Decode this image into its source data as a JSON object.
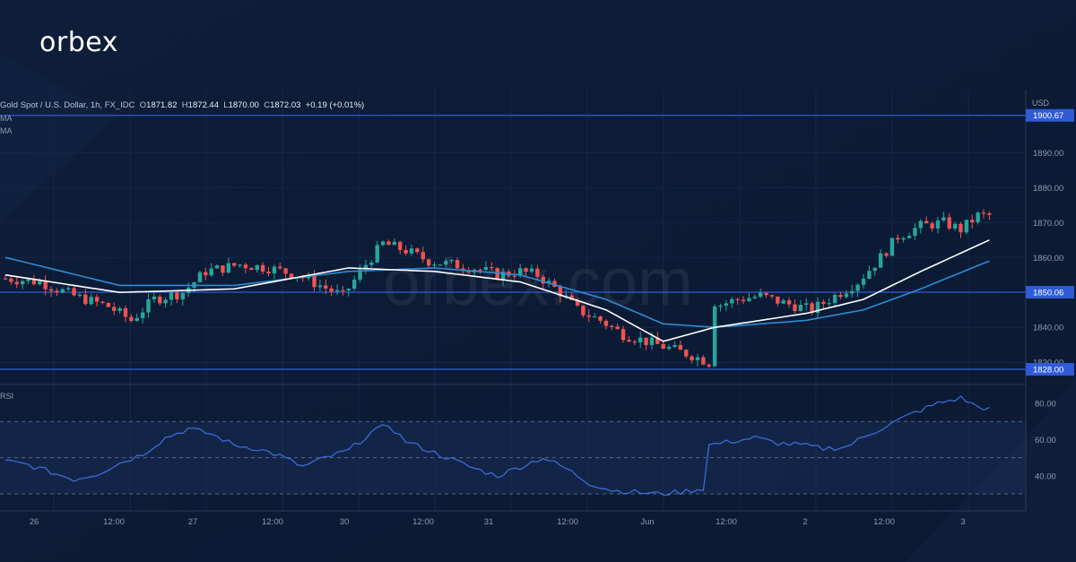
{
  "brand": {
    "logo_text": "orbex",
    "watermark": "orbex.com"
  },
  "legend": {
    "symbol": "Gold Spot / U.S. Dollar, 1h, FX_IDC",
    "o_label": "O",
    "o": "1871.82",
    "h_label": "H",
    "h": "1872.44",
    "l_label": "L",
    "l": "1870.00",
    "c_label": "C",
    "c": "1872.03",
    "change": "+0.19 (+0.01%)"
  },
  "indicator_labels": {
    "ma1": "MA",
    "ma2": "MA",
    "rsi": "RSI"
  },
  "price_axis": {
    "currency": "USD",
    "ticks": [
      "1890.00",
      "1880.00",
      "1870.00",
      "1860.00",
      "1840.00",
      "1830.00"
    ],
    "levels": [
      {
        "label": "1900.67",
        "value": 1900.67
      },
      {
        "label": "1850.06",
        "value": 1850.06
      },
      {
        "label": "1828.00",
        "value": 1828.0
      }
    ]
  },
  "rsi_axis": {
    "ticks": [
      "80.00",
      "60.00",
      "40.00"
    ]
  },
  "time_axis": {
    "labels": [
      "26",
      "12:00",
      "27",
      "12:00",
      "30",
      "12:00",
      "31",
      "12:00",
      "Jun",
      "12:00",
      "2",
      "12:00",
      "3"
    ]
  },
  "colors": {
    "background": "#0d1b33",
    "up": "#26a69a",
    "down": "#ef5350",
    "level_line": "#2f5bd6",
    "ma_fast": "#ffffff",
    "ma_slow": "#2e8bd6",
    "rsi_line": "#3f6ee0"
  },
  "chart_data": {
    "type": "line",
    "title": "Gold Spot / U.S. Dollar, 1h, FX_IDC",
    "ylabel": "USD",
    "ylim": [
      1826,
      1904
    ],
    "grid": true,
    "horizontal_levels": [
      1900.67,
      1850.06,
      1828.0
    ],
    "price_path": [
      [
        0,
        1854
      ],
      [
        6,
        1853
      ],
      [
        12,
        1849
      ],
      [
        18,
        1846
      ],
      [
        22,
        1842
      ],
      [
        26,
        1848
      ],
      [
        31,
        1850
      ],
      [
        35,
        1856
      ],
      [
        41,
        1858
      ],
      [
        46,
        1857
      ],
      [
        51,
        1855
      ],
      [
        55,
        1852
      ],
      [
        59,
        1849
      ],
      [
        63,
        1858
      ],
      [
        66,
        1864
      ],
      [
        70,
        1862
      ],
      [
        74,
        1859
      ],
      [
        78,
        1858
      ],
      [
        82,
        1857
      ],
      [
        86,
        1855
      ],
      [
        90,
        1856
      ],
      [
        93,
        1855
      ],
      [
        97,
        1850
      ],
      [
        100,
        1845
      ],
      [
        104,
        1842
      ],
      [
        108,
        1838
      ],
      [
        112,
        1836
      ],
      [
        116,
        1834
      ],
      [
        120,
        1832
      ],
      [
        123,
        1830
      ],
      [
        124,
        1846
      ],
      [
        128,
        1848
      ],
      [
        132,
        1849
      ],
      [
        136,
        1847
      ],
      [
        141,
        1845
      ],
      [
        145,
        1849
      ],
      [
        149,
        1853
      ],
      [
        153,
        1860
      ],
      [
        156,
        1866
      ],
      [
        160,
        1869
      ],
      [
        164,
        1870
      ],
      [
        167,
        1868
      ],
      [
        170,
        1872
      ],
      [
        172,
        1872
      ]
    ],
    "series": [
      {
        "name": "MA",
        "style": "fast",
        "x": [
          0,
          20,
          40,
          60,
          75,
          90,
          105,
          115,
          124,
          140,
          150,
          160,
          172
        ],
        "values": [
          1855,
          1850,
          1851,
          1857,
          1856,
          1853,
          1845,
          1836,
          1840,
          1844,
          1848,
          1856,
          1865
        ]
      },
      {
        "name": "MA",
        "style": "slow",
        "x": [
          0,
          20,
          40,
          60,
          75,
          90,
          105,
          115,
          124,
          140,
          150,
          160,
          172
        ],
        "values": [
          1860,
          1852,
          1852,
          1856,
          1857,
          1855,
          1848,
          1841,
          1840,
          1842,
          1845,
          1851,
          1859
        ]
      }
    ],
    "rsi": {
      "ticks": [
        80,
        60,
        40
      ],
      "bands": [
        70,
        30
      ],
      "points": [
        [
          0,
          48
        ],
        [
          4,
          46
        ],
        [
          8,
          42
        ],
        [
          12,
          38
        ],
        [
          16,
          41
        ],
        [
          20,
          47
        ],
        [
          24,
          52
        ],
        [
          28,
          61
        ],
        [
          32,
          66
        ],
        [
          36,
          63
        ],
        [
          40,
          57
        ],
        [
          44,
          55
        ],
        [
          48,
          51
        ],
        [
          52,
          45
        ],
        [
          56,
          50
        ],
        [
          60,
          54
        ],
        [
          64,
          64
        ],
        [
          67,
          68
        ],
        [
          70,
          59
        ],
        [
          74,
          54
        ],
        [
          78,
          49
        ],
        [
          82,
          44
        ],
        [
          86,
          40
        ],
        [
          90,
          45
        ],
        [
          94,
          50
        ],
        [
          98,
          44
        ],
        [
          102,
          36
        ],
        [
          106,
          32
        ],
        [
          110,
          31
        ],
        [
          114,
          30
        ],
        [
          118,
          31
        ],
        [
          122,
          33
        ],
        [
          123,
          57
        ],
        [
          127,
          59
        ],
        [
          131,
          61
        ],
        [
          135,
          58
        ],
        [
          139,
          57
        ],
        [
          143,
          55
        ],
        [
          147,
          56
        ],
        [
          151,
          63
        ],
        [
          155,
          69
        ],
        [
          159,
          75
        ],
        [
          163,
          80
        ],
        [
          167,
          83
        ],
        [
          170,
          78
        ],
        [
          172,
          77
        ]
      ]
    }
  }
}
